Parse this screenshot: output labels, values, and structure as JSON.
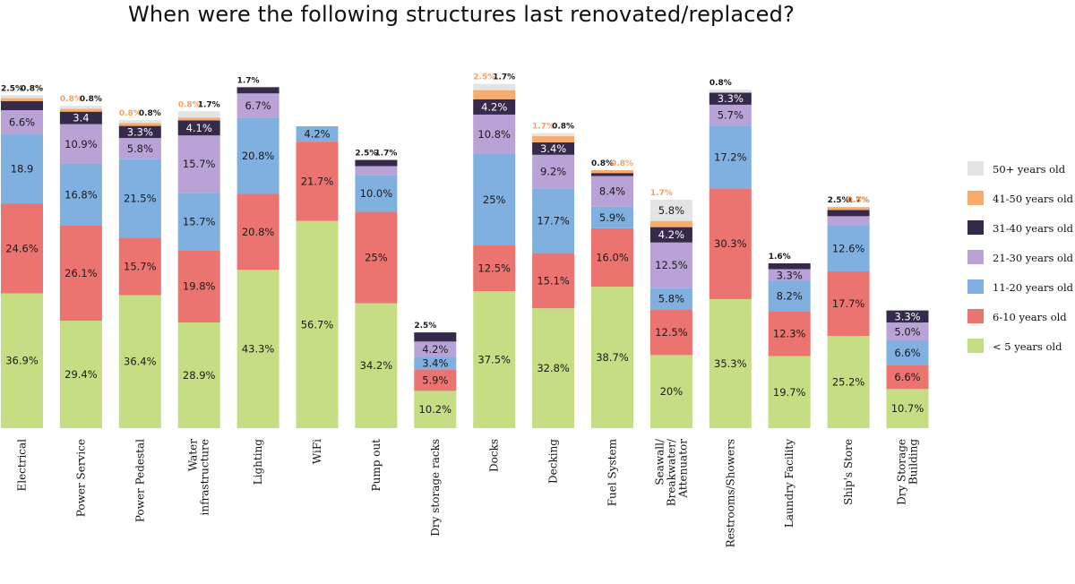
{
  "chart_data": {
    "type": "bar",
    "stacked": true,
    "title": "When were the following structures last renovated/replaced?",
    "xlabel": "",
    "ylabel": "",
    "ylim": [
      0,
      100
    ],
    "grid": false,
    "legend_position": "right",
    "categories": [
      [
        "Electrical"
      ],
      [
        "Power Service"
      ],
      [
        "Power Pedestal"
      ],
      [
        "Water",
        "infrastructure"
      ],
      [
        "Lighting"
      ],
      [
        "WiFi"
      ],
      [
        "Pump out"
      ],
      [
        "Dry storage racks"
      ],
      [
        "Docks"
      ],
      [
        "Decking"
      ],
      [
        "Fuel System"
      ],
      [
        "Seawall/",
        "Breakwater/",
        "Attenuator"
      ],
      [
        "Restrooms/Showers"
      ],
      [
        "Laundry Facility"
      ],
      [
        "Ship's Store"
      ],
      [
        "Dry Storage",
        "Building"
      ]
    ],
    "series": [
      {
        "name": "< 5 years old",
        "color": "#c5dd83",
        "values": [
          36.9,
          29.4,
          36.4,
          28.9,
          43.3,
          56.7,
          34.2,
          10.2,
          37.5,
          32.8,
          38.7,
          20,
          35.3,
          19.7,
          25.2,
          10.7
        ],
        "labels": [
          "36.9%",
          "29.4%",
          "36.4%",
          "28.9%",
          "43.3%",
          "56.7%",
          "34.2%",
          "10.2%",
          "37.5%",
          "32.8%",
          "38.7%",
          "20%",
          "35.3%",
          "19.7%",
          "25.2%",
          "10.7%"
        ]
      },
      {
        "name": "6-10 years old",
        "color": "#ec7470",
        "values": [
          24.6,
          26.1,
          15.7,
          19.8,
          20.8,
          21.7,
          25,
          5.9,
          12.5,
          15.1,
          16.0,
          12.5,
          30.3,
          12.3,
          17.7,
          6.6
        ],
        "labels": [
          "24.6%",
          "26.1%",
          "15.7%",
          "19.8%",
          "20.8%",
          "21.7%",
          "25%",
          "5.9%",
          "12.5%",
          "15.1%",
          "16.0%",
          "12.5%",
          "30.3%",
          "12.3%",
          "17.7%",
          "6.6%"
        ]
      },
      {
        "name": "11-20 years old",
        "color": "#7fb0e0",
        "values": [
          18.9,
          16.8,
          21.5,
          15.7,
          20.8,
          4.2,
          10.0,
          3.4,
          25,
          17.7,
          5.9,
          5.8,
          17.2,
          8.2,
          12.6,
          6.6
        ],
        "labels": [
          "18.9",
          "16.8%",
          "21.5%",
          "15.7%",
          "20.8%",
          "4.2%",
          "10.0%",
          "3.4%",
          "25%",
          "17.7%",
          "5.9%",
          "5.8%",
          "17.2%",
          "8.2%",
          "12.6%",
          "6.6%"
        ]
      },
      {
        "name": "21-30 years old",
        "color": "#b9a2d6",
        "values": [
          6.6,
          10.9,
          5.8,
          15.7,
          6.7,
          0,
          2.5,
          4.2,
          10.8,
          9.2,
          8.4,
          12.5,
          5.7,
          3.3,
          2.5,
          5.0
        ],
        "labels": [
          "6.6%",
          "10.9%",
          "5.8%",
          "15.7%",
          "6.7%",
          "",
          "2.5%",
          "4.2%",
          "10.8%",
          "9.2%",
          "8.4%",
          "12.5%",
          "5.7%",
          "3.3%",
          "2.5%",
          "5.0%"
        ]
      },
      {
        "name": "31-40 years old",
        "color": "#352a4b",
        "values": [
          2.5,
          3.4,
          3.3,
          4.1,
          1.7,
          0,
          1.7,
          2.5,
          4.2,
          3.4,
          0.8,
          4.2,
          3.3,
          1.6,
          1.7,
          3.3
        ],
        "labels": [
          "2.5%",
          "3.4",
          "3.3%",
          "4.1%",
          "1.7%",
          "",
          "1.7%",
          "2.5%",
          "4.2%",
          "3.4%",
          "0.8%",
          "4.2%",
          "3.3%",
          "1.6%",
          "1.7%",
          "3.3%"
        ]
      },
      {
        "name": "41-50 years old",
        "color": "#f7ab6c",
        "values": [
          0.8,
          0.8,
          0.8,
          0.8,
          0,
          0,
          0,
          0,
          2.5,
          1.7,
          0.8,
          1.7,
          0,
          0,
          0.8,
          0
        ],
        "labels": [
          "0.8%",
          "0.8%",
          "0.8%",
          "0.8%",
          "",
          "",
          "",
          "",
          "2.5%",
          "1.7%",
          "0.8%",
          "1.7%",
          "",
          "",
          "0.8%",
          ""
        ]
      },
      {
        "name": "50+ years old",
        "color": "#e4e4e4",
        "values": [
          0.8,
          0.8,
          0.8,
          1.7,
          0,
          0,
          0,
          0,
          1.7,
          0.8,
          0,
          5.8,
          0.8,
          0,
          0,
          0
        ],
        "labels": [
          "0.8%",
          "0.8%",
          "0.8%",
          "1.7%",
          "",
          "",
          "",
          "",
          "1.7%",
          "0.8%",
          "",
          "5.8%",
          "0.8%",
          "",
          "",
          ""
        ]
      }
    ],
    "legend": [
      {
        "name": "50+ years old",
        "color": "#e4e4e4"
      },
      {
        "name": "41-50 years old",
        "color": "#f7ab6c"
      },
      {
        "name": "31-40 years old",
        "color": "#352a4b"
      },
      {
        "name": "21-30 years old",
        "color": "#b9a2d6"
      },
      {
        "name": "11-20 years old",
        "color": "#7fb0e0"
      },
      {
        "name": "6-10 years old",
        "color": "#ec7470"
      },
      {
        "name": "< 5 years old",
        "color": "#c5dd83"
      }
    ]
  }
}
